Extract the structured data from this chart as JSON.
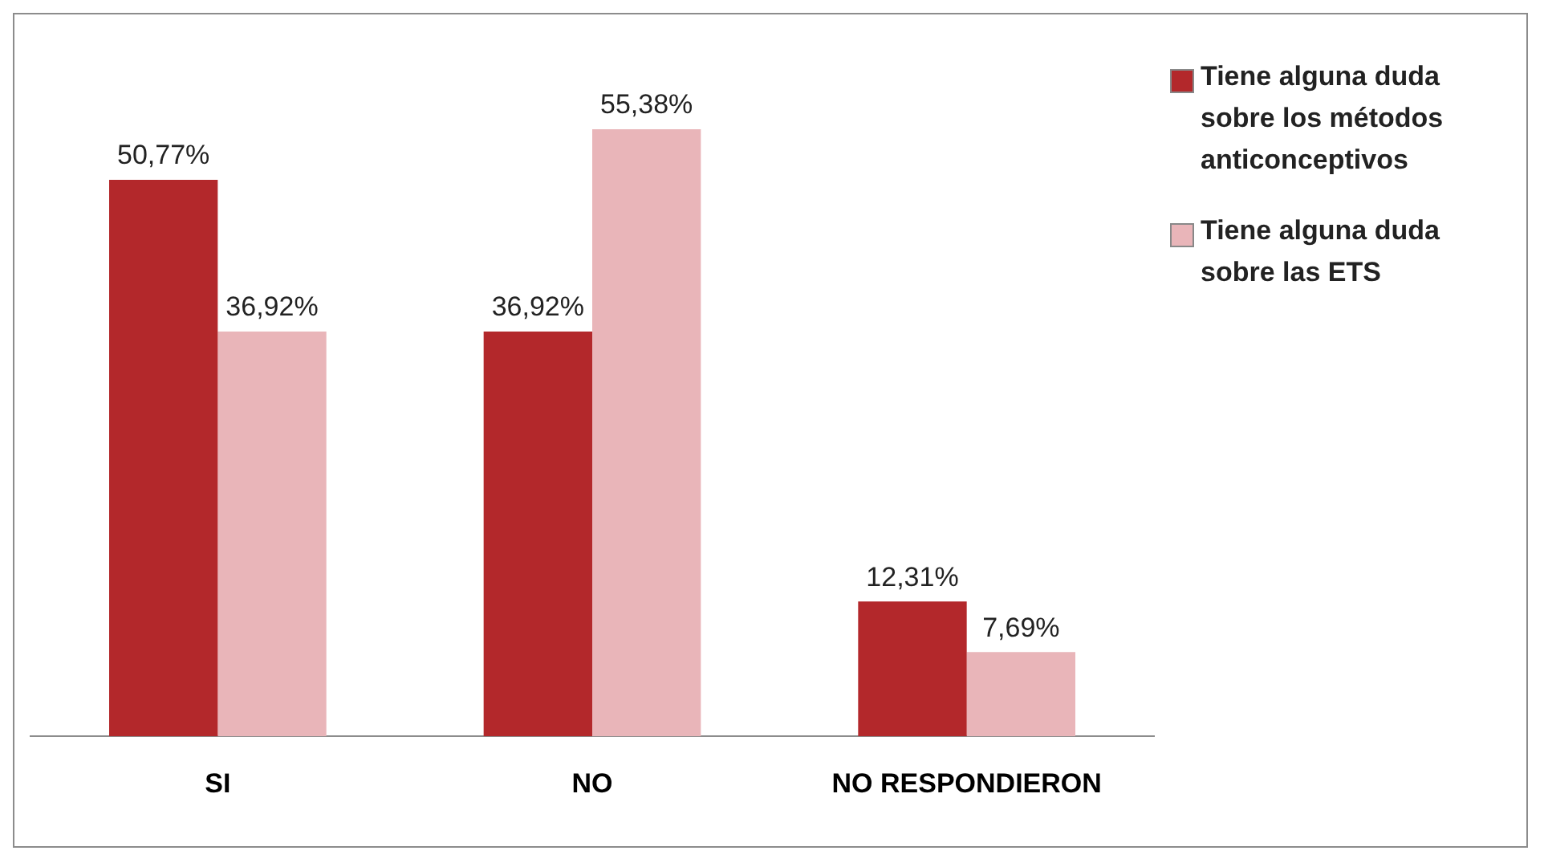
{
  "chart_data": {
    "type": "bar",
    "categories": [
      "SI",
      "NO",
      "NO RESPONDIERON"
    ],
    "series": [
      {
        "name": "Tiene alguna duda sobre los métodos anticonceptivos",
        "color": "#b3282b",
        "values": [
          50.77,
          36.92,
          12.31
        ],
        "value_labels": [
          "50,77%",
          "36,92%",
          "12,31%"
        ]
      },
      {
        "name": "Tiene alguna duda sobre las ETS",
        "color": "#e9b5b9",
        "values": [
          36.92,
          55.38,
          7.69
        ],
        "value_labels": [
          "36,92%",
          "55,38%",
          "7,69%"
        ]
      }
    ],
    "legend": "right",
    "tick_labels": "x",
    "grid": false
  }
}
